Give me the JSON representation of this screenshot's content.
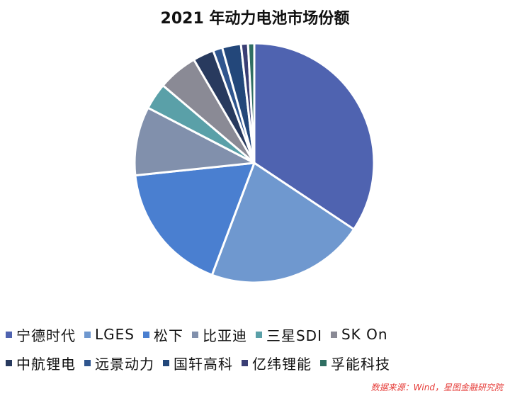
{
  "chart_data": {
    "type": "pie",
    "title": "2021 年动力电池市场份额",
    "slices": [
      {
        "label": "宁德时代",
        "value": 32.6,
        "color": "#4f63b0"
      },
      {
        "label": "LGES",
        "value": 20.3,
        "color": "#6f98cf"
      },
      {
        "label": "松下",
        "value": 16.7,
        "color": "#4a7fd0"
      },
      {
        "label": "比亚迪",
        "value": 8.8,
        "color": "#8190ac"
      },
      {
        "label": "三星SDI",
        "value": 3.4,
        "color": "#5aa0a8"
      },
      {
        "label": "SK On",
        "value": 5.1,
        "color": "#8a8a95"
      },
      {
        "label": "中航锂电",
        "value": 2.7,
        "color": "#283a5e"
      },
      {
        "label": "远景动力",
        "value": 1.2,
        "color": "#2f558e"
      },
      {
        "label": "国轩高科",
        "value": 2.4,
        "color": "#23477a"
      },
      {
        "label": "亿纬锂能",
        "value": 0.9,
        "color": "#3a3e74"
      },
      {
        "label": "孚能科技",
        "value": 0.8,
        "color": "#2f6e62"
      }
    ],
    "legend_position": "bottom"
  },
  "source": "数据来源：Wind，星图金融研究院"
}
